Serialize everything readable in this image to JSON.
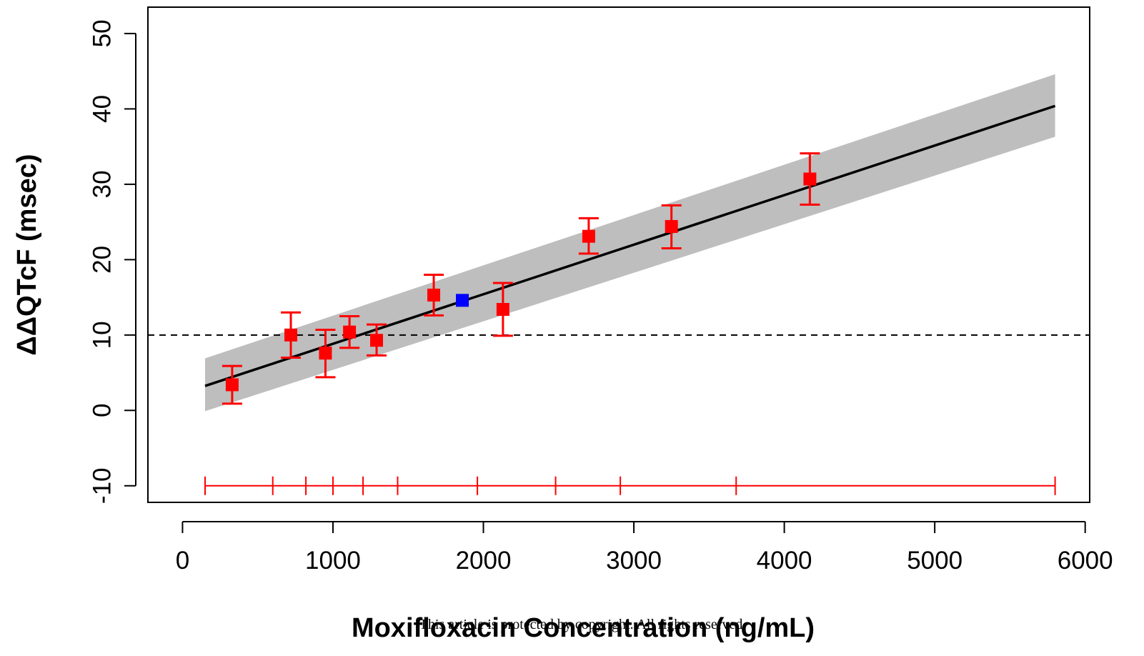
{
  "chart_data": {
    "type": "scatter",
    "xlabel": "Moxifloxacin Concentration (ng/mL)",
    "ylabel": "ΔΔQTcF (msec)",
    "xlim": [
      -230,
      6030
    ],
    "ylim": [
      -12.2,
      53.5
    ],
    "x_ticks": [
      0,
      1000,
      2000,
      3000,
      4000,
      5000,
      6000
    ],
    "y_ticks": [
      -10,
      0,
      10,
      20,
      30,
      40,
      50
    ],
    "x_tick_labels": [
      "0",
      "1000",
      "2000",
      "3000",
      "4000",
      "5000",
      "6000"
    ],
    "y_tick_labels": [
      "-10",
      "0",
      "10",
      "20",
      "30",
      "40",
      "50"
    ],
    "grid": false,
    "reference_line": {
      "y": 10,
      "style": "dashed",
      "color": "#000000"
    },
    "regression": {
      "x_range": [
        150,
        5800
      ],
      "intercept": 2.26,
      "slope": 0.006575,
      "ci_lower_at_ends": [
        -0.1,
        36.3
      ],
      "ci_upper_at_ends": [
        6.9,
        44.6
      ],
      "line_color": "#000000",
      "band_color": "#bebebe"
    },
    "series": [
      {
        "marker": "square",
        "color": "#ff0000",
        "points": [
          {
            "x": 330,
            "y": 3.4,
            "ylow": 0.9,
            "yhigh": 5.9
          },
          {
            "x": 720,
            "y": 10.0,
            "ylow": 7.0,
            "yhigh": 13.0
          },
          {
            "x": 950,
            "y": 7.6,
            "ylow": 4.4,
            "yhigh": 10.7
          },
          {
            "x": 1110,
            "y": 10.4,
            "ylow": 8.3,
            "yhigh": 12.5
          },
          {
            "x": 1290,
            "y": 9.3,
            "ylow": 7.3,
            "yhigh": 11.4
          },
          {
            "x": 1670,
            "y": 15.3,
            "ylow": 12.6,
            "yhigh": 18.0
          },
          {
            "x": 2130,
            "y": 13.4,
            "ylow": 9.9,
            "yhigh": 16.9
          },
          {
            "x": 2700,
            "y": 23.1,
            "ylow": 20.8,
            "yhigh": 25.5
          },
          {
            "x": 3250,
            "y": 24.4,
            "ylow": 21.5,
            "yhigh": 27.2
          },
          {
            "x": 4170,
            "y": 30.7,
            "ylow": 27.3,
            "yhigh": 34.1
          }
        ]
      },
      {
        "marker": "square",
        "color": "#0000ff",
        "points": [
          {
            "x": 1860,
            "y": 14.6
          }
        ]
      }
    ],
    "bin_bar": {
      "y": -10,
      "color": "#ff0000",
      "breaks": [
        150,
        600,
        820,
        1000,
        1200,
        1430,
        1960,
        2480,
        2910,
        3680,
        5800
      ]
    }
  },
  "notice": "This article is protected by copyright. All rights reserved"
}
